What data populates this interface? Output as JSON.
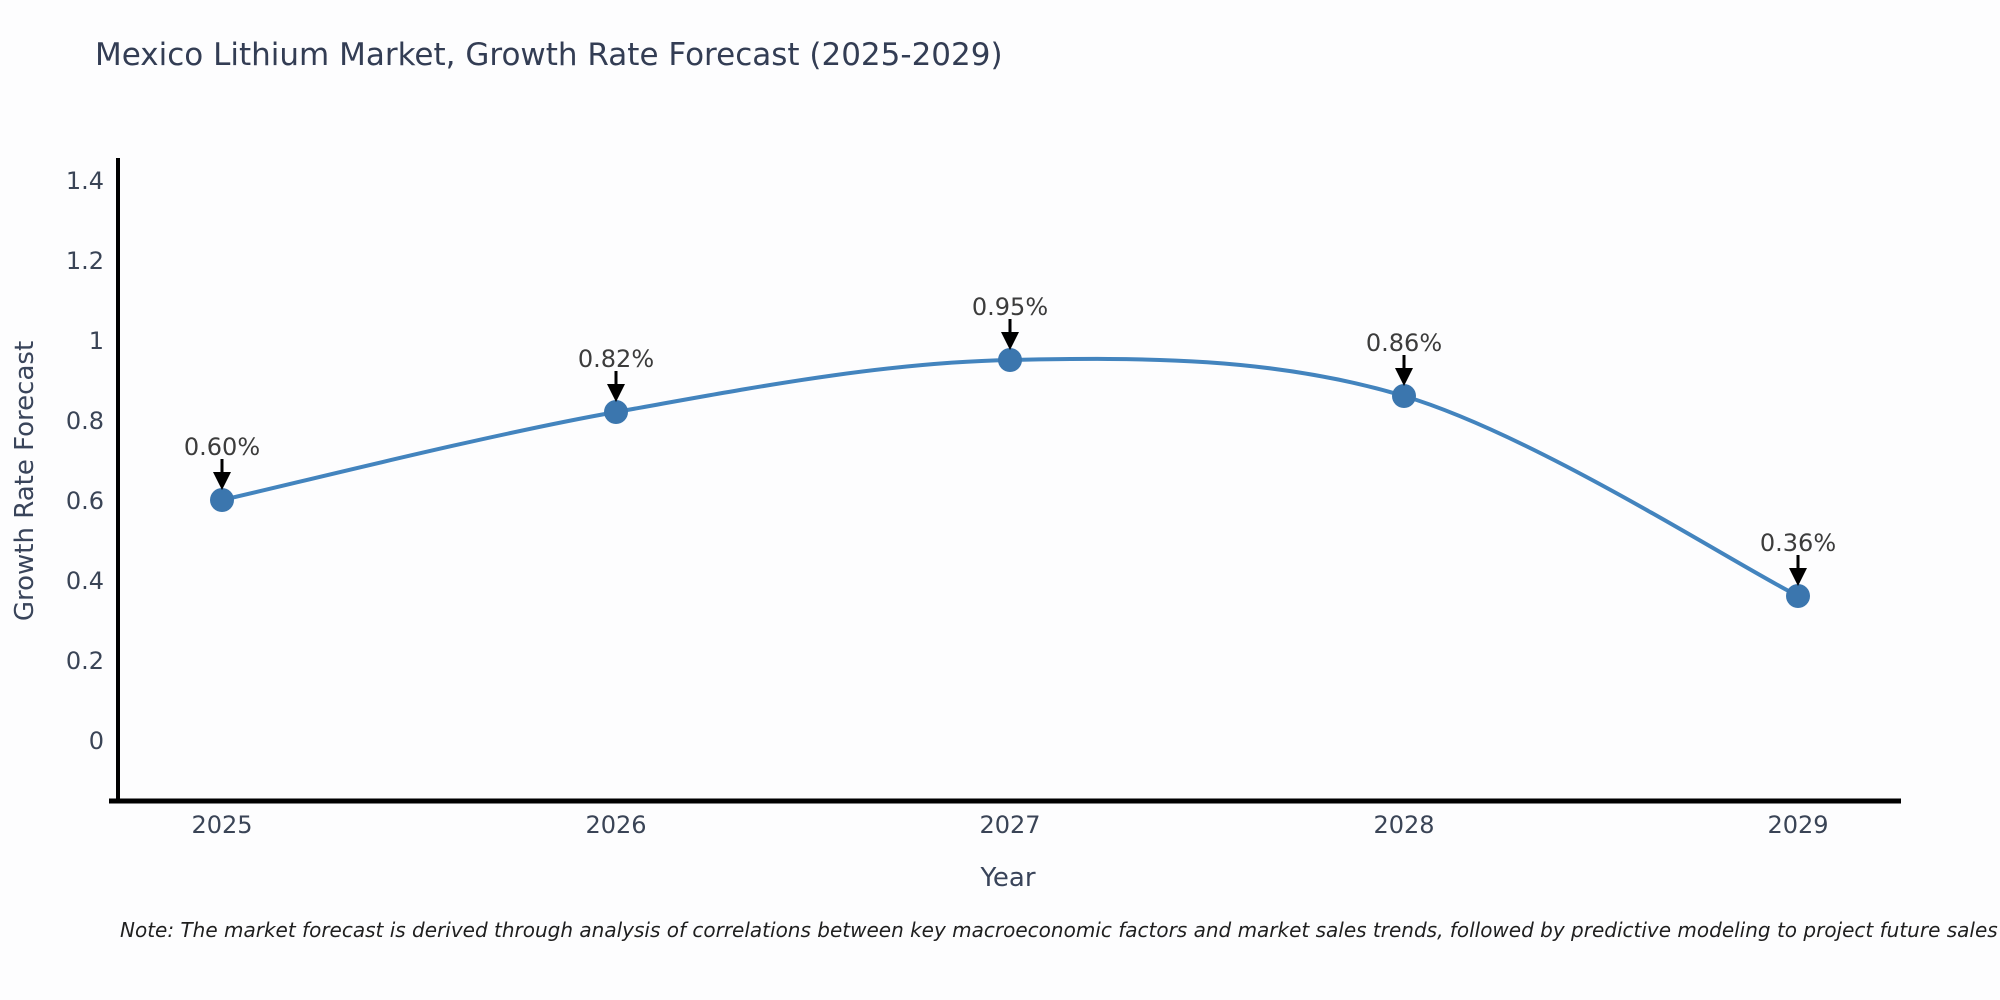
{
  "title": "Mexico Lithium Market, Growth Rate Forecast (2025-2029)",
  "note": "Note: The market forecast is derived through analysis of correlations between key macroeconomic factors and market sales trends, followed by predictive modeling to project future sales",
  "chart_data": {
    "type": "line",
    "title": "Mexico Lithium Market, Growth Rate Forecast (2025-2029)",
    "x": [
      2025,
      2026,
      2027,
      2028,
      2029
    ],
    "series": [
      {
        "name": "Growth Rate Forecast",
        "values": [
          0.6,
          0.82,
          0.95,
          0.86,
          0.36
        ]
      }
    ],
    "point_labels": [
      "0.60%",
      "0.82%",
      "0.95%",
      "0.86%",
      "0.36%"
    ],
    "xlabel": "Year",
    "ylabel": "Growth Rate Forecast",
    "yticks": [
      1.4,
      1.2,
      1,
      0.8,
      0.6,
      0.4,
      0.2,
      0
    ],
    "ylim": [
      -0.15,
      1.46
    ],
    "grid": false,
    "legend": "none",
    "line_color": "#4384be",
    "marker_color": "#3b76ae",
    "marker": "circle",
    "axis_color": "#000000",
    "annotation_arrow_color": "#000000"
  }
}
